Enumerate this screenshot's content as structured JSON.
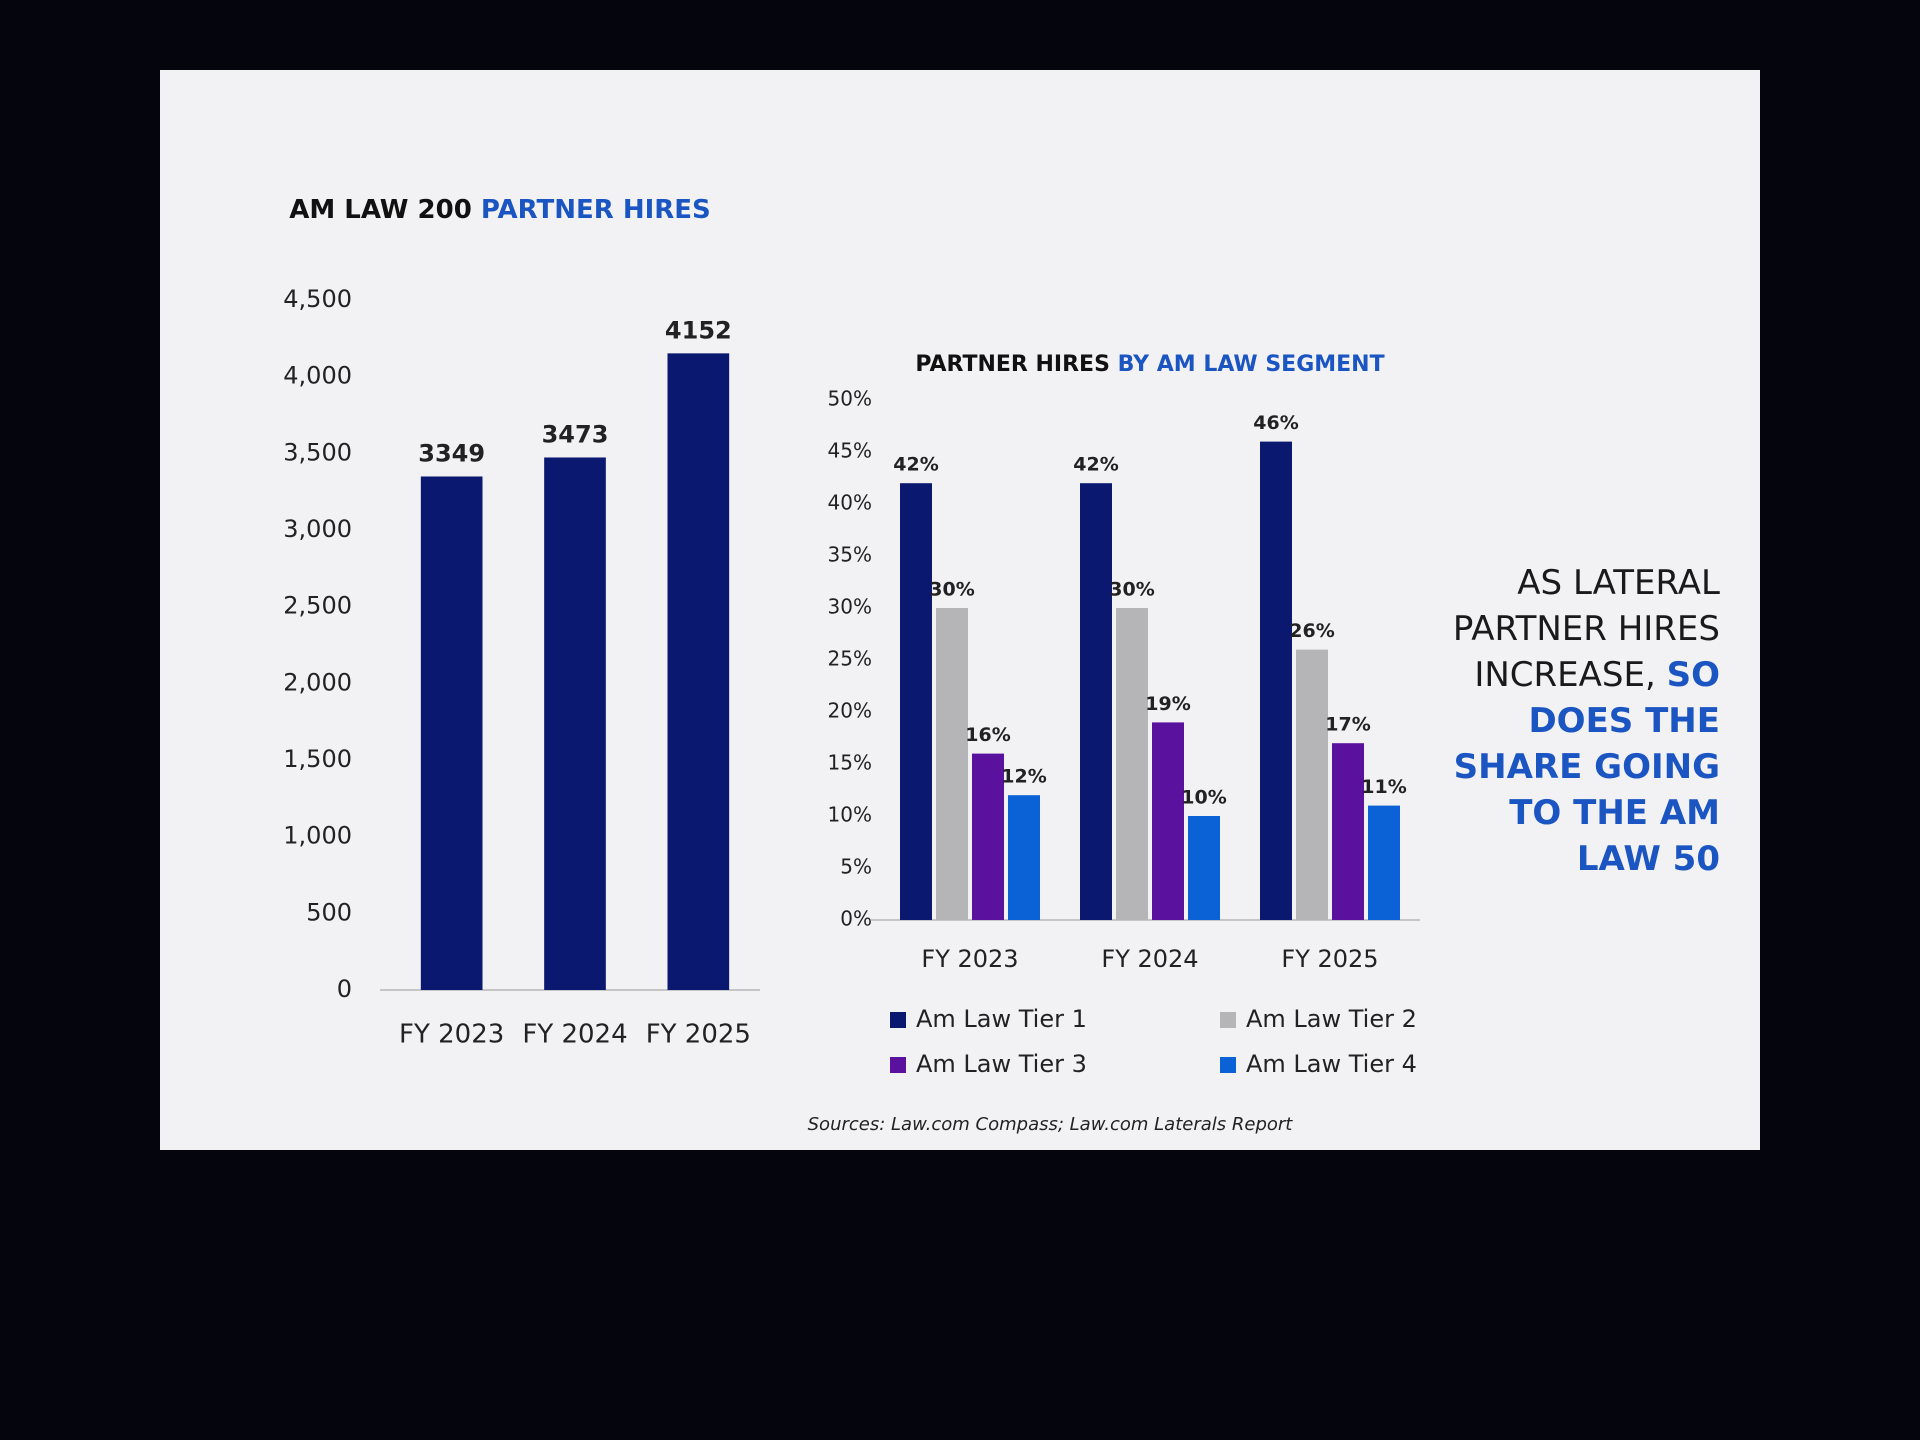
{
  "chart_data": [
    {
      "type": "bar",
      "title": [
        "AM LAW 200",
        "PARTNER HIRES"
      ],
      "categories": [
        "FY 2023",
        "FY 2024",
        "FY 2025"
      ],
      "values": [
        3349,
        3473,
        4152
      ],
      "color": "#0b1870",
      "ylim": [
        0,
        4500
      ],
      "yticks": [
        0,
        500,
        {
          "value": 1000,
          "label": "1,000"
        },
        {
          "value": 1500,
          "label": "1,500"
        },
        {
          "value": 2000,
          "label": "2,000"
        },
        {
          "value": 2500,
          "label": "2,500"
        },
        {
          "value": 3000,
          "label": "3,000"
        },
        {
          "value": 3500,
          "label": "3,500"
        },
        {
          "value": 4000,
          "label": "4,000"
        },
        {
          "value": 4500,
          "label": "4,500"
        }
      ]
    },
    {
      "type": "grouped_bar",
      "title": [
        "PARTNER HIRES",
        "BY AM LAW SEGMENT"
      ],
      "categories": [
        "FY 2023",
        "FY 2024",
        "FY 2025"
      ],
      "series": [
        {
          "name": "Am Law Tier 1",
          "color": "#0b1870",
          "values": [
            42,
            42,
            46
          ],
          "value_labels": [
            "42%",
            "42%",
            "46%"
          ]
        },
        {
          "name": "Am Law Tier 2",
          "color": "#b5b5b8",
          "values": [
            30,
            30,
            26
          ],
          "value_labels": [
            "30%",
            "30%",
            "26%"
          ]
        },
        {
          "name": "Am Law Tier 3",
          "color": "#5a129e",
          "values": [
            16,
            19,
            17
          ],
          "value_labels": [
            "16%",
            "19%",
            "17%"
          ]
        },
        {
          "name": "Am Law Tier 4",
          "color": "#0b62d6",
          "values": [
            12,
            10,
            11
          ],
          "value_labels": [
            "12%",
            "10%",
            "11%"
          ]
        }
      ],
      "ylim": [
        0,
        50
      ],
      "yticks": [
        {
          "value": 0,
          "label": "0%"
        },
        {
          "value": 5,
          "label": "5%"
        },
        {
          "value": 10,
          "label": "10%"
        },
        {
          "value": 15,
          "label": "15%"
        },
        {
          "value": 20,
          "label": "20%"
        },
        {
          "value": 25,
          "label": "25%"
        },
        {
          "value": 30,
          "label": "30%"
        },
        {
          "value": 35,
          "label": "35%"
        },
        {
          "value": 40,
          "label": "40%"
        },
        {
          "value": 45,
          "label": "45%"
        },
        {
          "value": 50,
          "label": "50%"
        }
      ]
    }
  ],
  "callout": [
    "AS LATERAL PARTNER HIRES INCREASE,",
    "SO DOES THE SHARE GOING TO THE AM LAW 50"
  ],
  "source": "Sources: Law.com Compass; Law.com Laterals Report"
}
